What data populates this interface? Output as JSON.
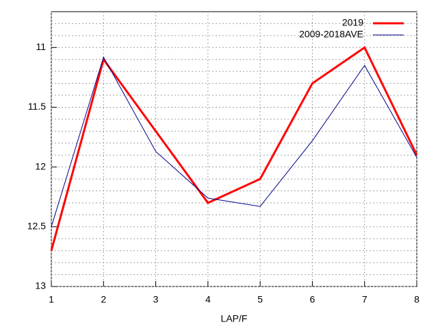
{
  "chart_data": {
    "type": "line",
    "xlabel": "LAP/F",
    "x": [
      1,
      2,
      3,
      4,
      5,
      6,
      7,
      8
    ],
    "series": [
      {
        "name": "2019",
        "color": "#ff0000",
        "values": [
          12.7,
          11.1,
          11.7,
          12.3,
          12.1,
          11.3,
          11.0,
          11.9
        ]
      },
      {
        "name": "2009-2018AVE",
        "color": "#00008b",
        "values": [
          12.5,
          11.08,
          11.87,
          12.26,
          12.33,
          11.78,
          11.15,
          11.92
        ]
      }
    ],
    "xlim": [
      1,
      8
    ],
    "xticks": [
      1,
      2,
      3,
      4,
      5,
      6,
      7,
      8
    ],
    "ylim": [
      13,
      10.7
    ],
    "yticks": [
      11,
      11.5,
      12,
      12.5,
      13
    ],
    "y_minor_ticks": [
      10.8,
      10.9,
      11.1,
      11.2,
      11.3,
      11.4,
      11.6,
      11.7,
      11.8,
      11.9,
      12.1,
      12.2,
      12.3,
      12.4,
      12.6,
      12.7,
      12.8,
      12.9
    ],
    "grid": true,
    "legend": "top-right"
  }
}
